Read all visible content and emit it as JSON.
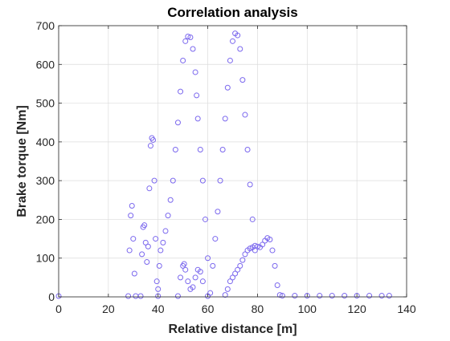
{
  "chart_data": {
    "type": "scatter",
    "title": "Correlation analysis",
    "xlabel": "Relative distance [m]",
    "ylabel": "Brake torque [Nm]",
    "xlim": [
      0,
      140
    ],
    "ylim": [
      0,
      700
    ],
    "xticks": [
      0,
      20,
      40,
      60,
      80,
      100,
      120,
      140
    ],
    "yticks": [
      0,
      100,
      200,
      300,
      400,
      500,
      600,
      700
    ],
    "xtick_labels": [
      "0",
      "20",
      "40",
      "60",
      "80",
      "100",
      "120",
      "140"
    ],
    "ytick_labels": [
      "0",
      "100",
      "200",
      "300",
      "400",
      "500",
      "600",
      "700"
    ],
    "grid": true,
    "marker": "hollow-circle",
    "colors": {
      "marker": "#7B68EE",
      "axis": "#262626",
      "grid": "#dcdcdc"
    },
    "series": [
      {
        "points": [
          [
            0,
            2
          ],
          [
            28,
            2
          ],
          [
            28.5,
            120
          ],
          [
            29,
            210
          ],
          [
            29.5,
            235
          ],
          [
            30,
            150
          ],
          [
            30.5,
            60
          ],
          [
            31,
            2
          ],
          [
            33,
            2
          ],
          [
            33.5,
            110
          ],
          [
            34,
            180
          ],
          [
            34.5,
            185
          ],
          [
            35,
            140
          ],
          [
            35.5,
            90
          ],
          [
            36,
            130
          ],
          [
            36.5,
            280
          ],
          [
            37,
            390
          ],
          [
            37.5,
            410
          ],
          [
            38,
            405
          ],
          [
            38.5,
            300
          ],
          [
            39,
            150
          ],
          [
            39.5,
            40
          ],
          [
            40,
            2
          ],
          [
            40,
            20
          ],
          [
            40.5,
            80
          ],
          [
            41,
            120
          ],
          [
            42,
            140
          ],
          [
            43,
            170
          ],
          [
            44,
            210
          ],
          [
            45,
            250
          ],
          [
            46,
            300
          ],
          [
            47,
            380
          ],
          [
            48,
            450
          ],
          [
            49,
            530
          ],
          [
            50,
            610
          ],
          [
            51,
            660
          ],
          [
            52,
            672
          ],
          [
            53,
            670
          ],
          [
            54,
            640
          ],
          [
            55,
            580
          ],
          [
            55.5,
            520
          ],
          [
            56,
            460
          ],
          [
            57,
            380
          ],
          [
            58,
            300
          ],
          [
            59,
            200
          ],
          [
            60,
            100
          ],
          [
            48,
            2
          ],
          [
            49,
            50
          ],
          [
            50,
            80
          ],
          [
            50.5,
            85
          ],
          [
            51,
            70
          ],
          [
            52,
            40
          ],
          [
            53,
            20
          ],
          [
            54,
            25
          ],
          [
            55,
            50
          ],
          [
            56,
            70
          ],
          [
            57,
            65
          ],
          [
            58,
            40
          ],
          [
            60,
            2
          ],
          [
            61,
            10
          ],
          [
            62,
            80
          ],
          [
            63,
            150
          ],
          [
            64,
            220
          ],
          [
            65,
            300
          ],
          [
            66,
            380
          ],
          [
            67,
            460
          ],
          [
            68,
            540
          ],
          [
            69,
            610
          ],
          [
            70,
            660
          ],
          [
            71,
            680
          ],
          [
            72,
            675
          ],
          [
            73,
            640
          ],
          [
            74,
            560
          ],
          [
            75,
            470
          ],
          [
            76,
            380
          ],
          [
            77,
            290
          ],
          [
            78,
            200
          ],
          [
            79,
            120
          ],
          [
            67,
            5
          ],
          [
            68,
            20
          ],
          [
            69,
            40
          ],
          [
            70,
            50
          ],
          [
            71,
            60
          ],
          [
            72,
            70
          ],
          [
            73,
            80
          ],
          [
            74,
            95
          ],
          [
            75,
            110
          ],
          [
            76,
            120
          ],
          [
            77,
            125
          ],
          [
            78,
            128
          ],
          [
            79,
            132
          ],
          [
            80,
            130
          ],
          [
            81,
            128
          ],
          [
            82,
            135
          ],
          [
            83,
            145
          ],
          [
            84,
            152
          ],
          [
            85,
            148
          ],
          [
            86,
            120
          ],
          [
            87,
            80
          ],
          [
            88,
            30
          ],
          [
            89,
            5
          ],
          [
            90,
            3
          ],
          [
            95,
            3
          ],
          [
            100,
            3
          ],
          [
            105,
            3
          ],
          [
            110,
            3
          ],
          [
            115,
            3
          ],
          [
            120,
            3
          ],
          [
            125,
            3
          ],
          [
            130,
            3
          ],
          [
            133,
            3
          ]
        ]
      }
    ]
  }
}
